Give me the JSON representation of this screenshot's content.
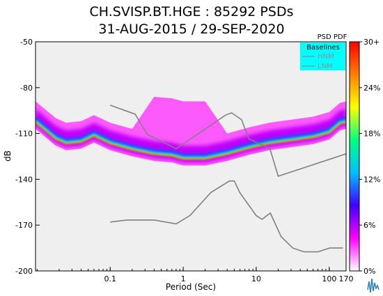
{
  "title": "CH.SVISP.BT.HGE : 85292 PSDs",
  "subtitle": "31-AUG-2015 / 29-SEP-2020",
  "colors": {
    "plot_background": "#efefef",
    "noise_model_line": "#808080",
    "legend_background": "#00ffff"
  },
  "chart_data": {
    "type": "heatmap",
    "xlabel": "Period (Sec)",
    "ylabel": "dB",
    "x_scale": "log",
    "xlim": [
      0.0095,
      170
    ],
    "ylim": [
      -200,
      -50
    ],
    "x_ticks": [
      {
        "value": 0.1,
        "label": "0.1"
      },
      {
        "value": 1,
        "label": "1"
      },
      {
        "value": 10,
        "label": "10"
      },
      {
        "value": 100,
        "label": "100"
      },
      {
        "value": 170,
        "label": "170"
      }
    ],
    "y_ticks": [
      {
        "value": -50,
        "label": "-50"
      },
      {
        "value": -80,
        "label": "-80"
      },
      {
        "value": -110,
        "label": "-110"
      },
      {
        "value": -140,
        "label": "-140"
      },
      {
        "value": -170,
        "label": "-170"
      },
      {
        "value": -200,
        "label": "-200"
      }
    ],
    "colorbar": {
      "title": "PSD PDF",
      "ticks": [
        {
          "value": 0,
          "label": "0%"
        },
        {
          "value": 6,
          "label": "6%"
        },
        {
          "value": 12,
          "label": "12%"
        },
        {
          "value": 18,
          "label": "18%"
        },
        {
          "value": 24,
          "label": "24%"
        },
        {
          "value": 30,
          "label": "30+"
        }
      ],
      "range": [
        0,
        30
      ],
      "colors": [
        "#ffffff",
        "#ff00ff",
        "#4000ff",
        "#00c0ff",
        "#00ff80",
        "#ffff00",
        "#ff8000",
        "#ff0000"
      ]
    },
    "legend": {
      "title": "Baselines",
      "placement": "top-right",
      "entries": [
        "HNM",
        "LNM"
      ]
    },
    "mode_curve": [
      {
        "x": 0.0095,
        "y": -103
      },
      {
        "x": 0.012,
        "y": -107
      },
      {
        "x": 0.018,
        "y": -114
      },
      {
        "x": 0.025,
        "y": -117
      },
      {
        "x": 0.04,
        "y": -116
      },
      {
        "x": 0.06,
        "y": -112
      },
      {
        "x": 0.1,
        "y": -117
      },
      {
        "x": 0.2,
        "y": -121
      },
      {
        "x": 0.4,
        "y": -124
      },
      {
        "x": 0.7,
        "y": -125
      },
      {
        "x": 1.0,
        "y": -127
      },
      {
        "x": 2.0,
        "y": -127
      },
      {
        "x": 4.0,
        "y": -124
      },
      {
        "x": 8.0,
        "y": -120
      },
      {
        "x": 15,
        "y": -117
      },
      {
        "x": 30,
        "y": -115
      },
      {
        "x": 60,
        "y": -113
      },
      {
        "x": 100,
        "y": -110
      },
      {
        "x": 140,
        "y": -104
      },
      {
        "x": 170,
        "y": -103
      }
    ],
    "hnm": [
      {
        "x": 0.1,
        "y": -91.5
      },
      {
        "x": 0.22,
        "y": -97.4
      },
      {
        "x": 0.32,
        "y": -110.5
      },
      {
        "x": 0.8,
        "y": -120.0
      },
      {
        "x": 3.8,
        "y": -98.0
      },
      {
        "x": 4.6,
        "y": -96.5
      },
      {
        "x": 6.3,
        "y": -101.0
      },
      {
        "x": 7.9,
        "y": -113.5
      },
      {
        "x": 15.4,
        "y": -120.0
      },
      {
        "x": 20,
        "y": -138.0
      },
      {
        "x": 354.8,
        "y": -118.3
      }
    ],
    "lnm": [
      {
        "x": 0.1,
        "y": -168.0
      },
      {
        "x": 0.17,
        "y": -166.7
      },
      {
        "x": 0.4,
        "y": -166.7
      },
      {
        "x": 0.8,
        "y": -169.2
      },
      {
        "x": 1.24,
        "y": -163.7
      },
      {
        "x": 2.4,
        "y": -148.6
      },
      {
        "x": 4.3,
        "y": -141.1
      },
      {
        "x": 5.0,
        "y": -141.1
      },
      {
        "x": 6.0,
        "y": -149.0
      },
      {
        "x": 10.0,
        "y": -163.8
      },
      {
        "x": 12.0,
        "y": -166.2
      },
      {
        "x": 15.6,
        "y": -162.1
      },
      {
        "x": 21.9,
        "y": -177.5
      },
      {
        "x": 31.6,
        "y": -185.0
      },
      {
        "x": 45,
        "y": -187.5
      },
      {
        "x": 70,
        "y": -187.5
      },
      {
        "x": 101,
        "y": -185.0
      },
      {
        "x": 154,
        "y": -185.0
      }
    ]
  }
}
